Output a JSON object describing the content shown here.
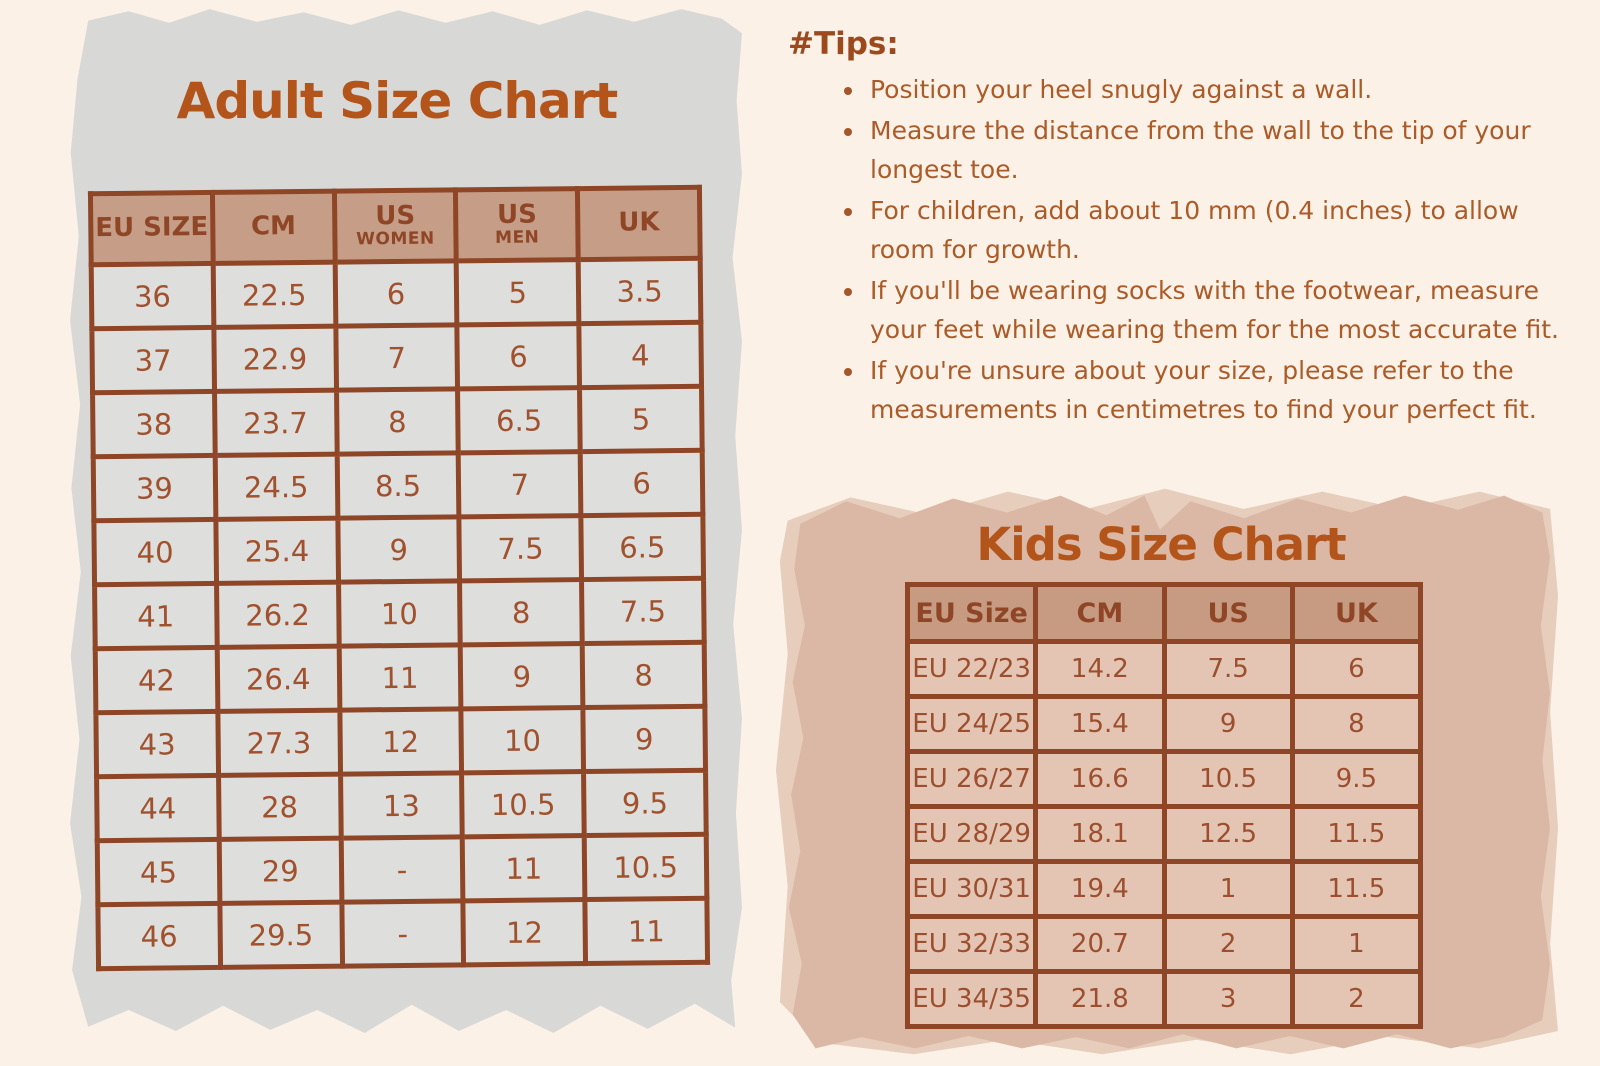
{
  "colors": {
    "page_bg": "#fbf1e7",
    "gray_paper": "#d8d9d7",
    "rose_paper": "#dbb8a5",
    "table_border": "#8f4627",
    "title_accent": "#b3551a",
    "adult_header_bg": "#c69e88",
    "adult_cell_bg": "#dededc",
    "kids_header_bg": "#c79b82",
    "kids_cell_bg": "#e4c5b3",
    "text_rust": "#a0512d"
  },
  "adult_chart": {
    "title": "Adult Size Chart",
    "headers": [
      {
        "main": "EU SIZE",
        "sub": ""
      },
      {
        "main": "CM",
        "sub": ""
      },
      {
        "main": "US",
        "sub": "WOMEN"
      },
      {
        "main": "US",
        "sub": "MEN"
      },
      {
        "main": "UK",
        "sub": ""
      }
    ],
    "rows": [
      [
        "36",
        "22.5",
        "6",
        "5",
        "3.5"
      ],
      [
        "37",
        "22.9",
        "7",
        "6",
        "4"
      ],
      [
        "38",
        "23.7",
        "8",
        "6.5",
        "5"
      ],
      [
        "39",
        "24.5",
        "8.5",
        "7",
        "6"
      ],
      [
        "40",
        "25.4",
        "9",
        "7.5",
        "6.5"
      ],
      [
        "41",
        "26.2",
        "10",
        "8",
        "7.5"
      ],
      [
        "42",
        "26.4",
        "11",
        "9",
        "8"
      ],
      [
        "43",
        "27.3",
        "12",
        "10",
        "9"
      ],
      [
        "44",
        "28",
        "13",
        "10.5",
        "9.5"
      ],
      [
        "45",
        "29",
        "-",
        "11",
        "10.5"
      ],
      [
        "46",
        "29.5",
        "-",
        "12",
        "11"
      ]
    ]
  },
  "tips": {
    "heading": "#Tips:",
    "items": [
      "Position your heel snugly against a wall.",
      "Measure the distance from the wall to the tip of your longest toe.",
      "For children, add about 10 mm (0.4 inches) to allow room for growth.",
      "If you'll be wearing socks with the footwear, measure your feet while wearing them for the most accurate fit.",
      "If you're unsure about your size, please refer to the measurements in centimetres to find your perfect fit."
    ]
  },
  "kids_chart": {
    "title": "Kids Size Chart",
    "headers": [
      {
        "main": "EU Size",
        "sub": ""
      },
      {
        "main": "CM",
        "sub": ""
      },
      {
        "main": "US",
        "sub": ""
      },
      {
        "main": "UK",
        "sub": ""
      }
    ],
    "rows": [
      [
        "EU 22/23",
        "14.2",
        "7.5",
        "6"
      ],
      [
        "EU 24/25",
        "15.4",
        "9",
        "8"
      ],
      [
        "EU 26/27",
        "16.6",
        "10.5",
        "9.5"
      ],
      [
        "EU 28/29",
        "18.1",
        "12.5",
        "11.5"
      ],
      [
        "EU 30/31",
        "19.4",
        "1",
        "11.5"
      ],
      [
        "EU 32/33",
        "20.7",
        "2",
        "1"
      ],
      [
        "EU 34/35",
        "21.8",
        "3",
        "2"
      ]
    ]
  }
}
